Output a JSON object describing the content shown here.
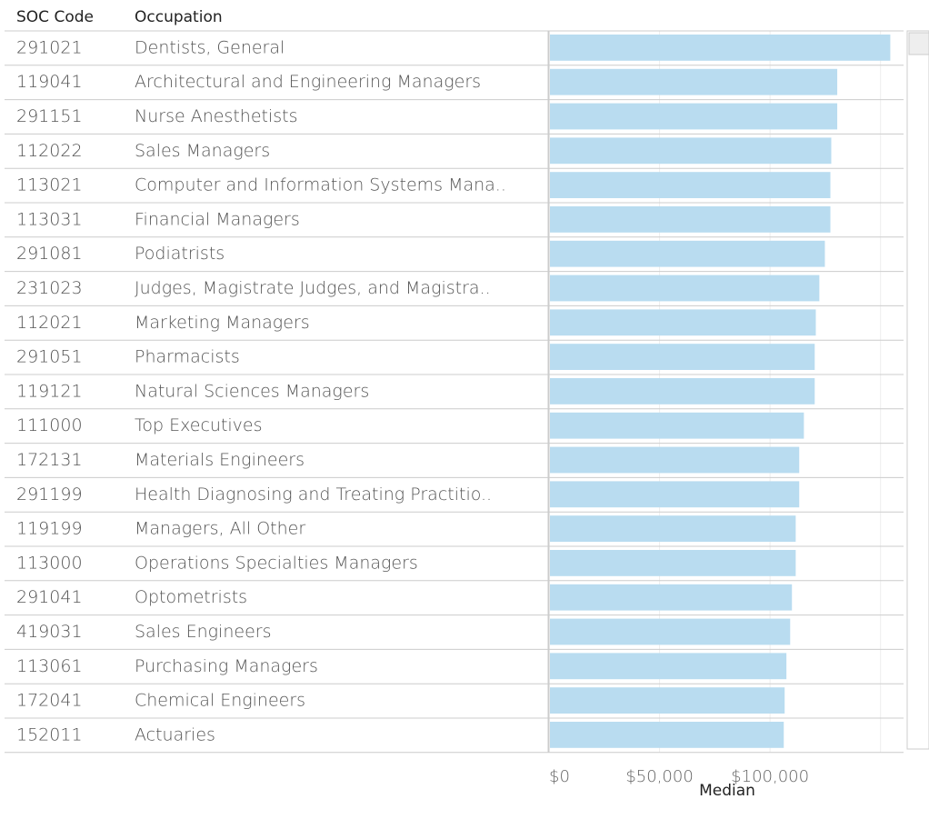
{
  "chart_data": {
    "type": "bar",
    "column_headers": [
      "SOC Code",
      "Occupation"
    ],
    "codes": [
      "291021",
      "119041",
      "291151",
      "112022",
      "113021",
      "113031",
      "291081",
      "231023",
      "112021",
      "291051",
      "119121",
      "111000",
      "172131",
      "291199",
      "119199",
      "113000",
      "291041",
      "419031",
      "113061",
      "172041",
      "152011"
    ],
    "categories": [
      "Dentists, General",
      "Architectural and Engineering Managers",
      "Nurse Anesthetists",
      "Sales Managers",
      "Computer and Information Systems Mana..",
      "Financial Managers",
      "Podiatrists",
      "Judges, Magistrate Judges, and Magistra..",
      "Marketing Managers",
      "Pharmacists",
      "Natural Sciences Managers",
      "Top Executives",
      "Materials Engineers",
      "Health Diagnosing and Treating Practitio..",
      "Managers, All Other",
      "Operations Specialties Managers",
      "Optometrists",
      "Sales Engineers",
      "Purchasing Managers",
      "Chemical Engineers",
      "Actuaries"
    ],
    "values": [
      154000,
      130000,
      130000,
      127300,
      126900,
      126900,
      124400,
      121900,
      120300,
      119800,
      119800,
      114900,
      112800,
      112800,
      111200,
      111200,
      109500,
      108700,
      107000,
      106200,
      105800
    ],
    "color": "#b9dcf0",
    "x_label": "Median",
    "xlim": [
      0,
      160000
    ],
    "xticks": [
      {
        "value": 0,
        "label": "$0"
      },
      {
        "value": 50000,
        "label": "$50,000"
      },
      {
        "value": 100000,
        "label": "$100,000"
      },
      {
        "value": 150000,
        "label": null
      }
    ],
    "grid": true
  }
}
